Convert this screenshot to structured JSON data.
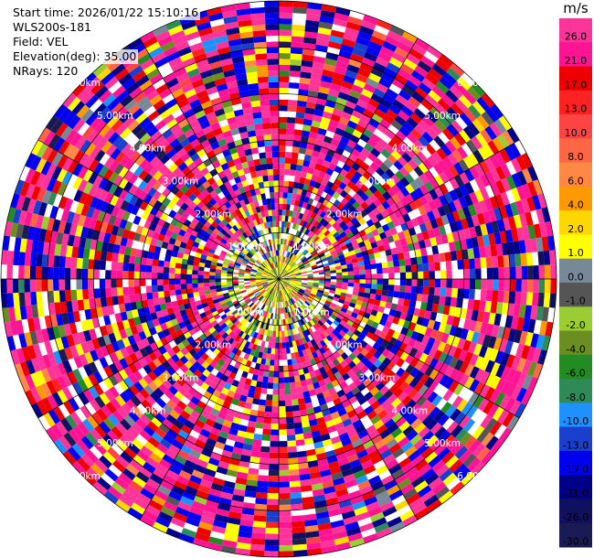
{
  "header": {
    "start_time": "Start time: 2026/01/22 15:10:16",
    "station": "WLS200s-181",
    "field": "Field: VEL",
    "elevation": "Elevation(deg): 35.00",
    "nrays": "NRays: 120"
  },
  "chart_data": {
    "type": "heatmap",
    "projection": "polar-ppi",
    "field": "VEL",
    "units": "m/s",
    "elevation_deg": 35.0,
    "n_rays": 120,
    "range_rings_km": [
      "1.00km",
      "2.00km",
      "3.00km",
      "4.00km",
      "5.00km",
      "6.00km"
    ],
    "colorbar": {
      "title": "m/s",
      "ticks": [
        "26.0",
        "21.0",
        "17.0",
        "13.0",
        "10.0",
        "8.0",
        "6.0",
        "4.0",
        "2.0",
        "1.0",
        "0.0",
        "-1.0",
        "-2.0",
        "-4.0",
        "-6.0",
        "-8.0",
        "-10.0",
        "-13.0",
        "-17.0",
        "-21.0",
        "-26.0",
        "-30.0"
      ],
      "colors": [
        "#ff3399",
        "#ff1493",
        "#ee0000",
        "#ff2222",
        "#ff4444",
        "#ff6644",
        "#ff8844",
        "#ff9900",
        "#ffd700",
        "#ffff00",
        "#778899",
        "#555555",
        "#9acd32",
        "#6b8e23",
        "#228b22",
        "#2e8b57",
        "#1e90ff",
        "#1a3fcc",
        "#0000ee",
        "#000088",
        "#101060",
        "#1a1a55"
      ]
    }
  }
}
